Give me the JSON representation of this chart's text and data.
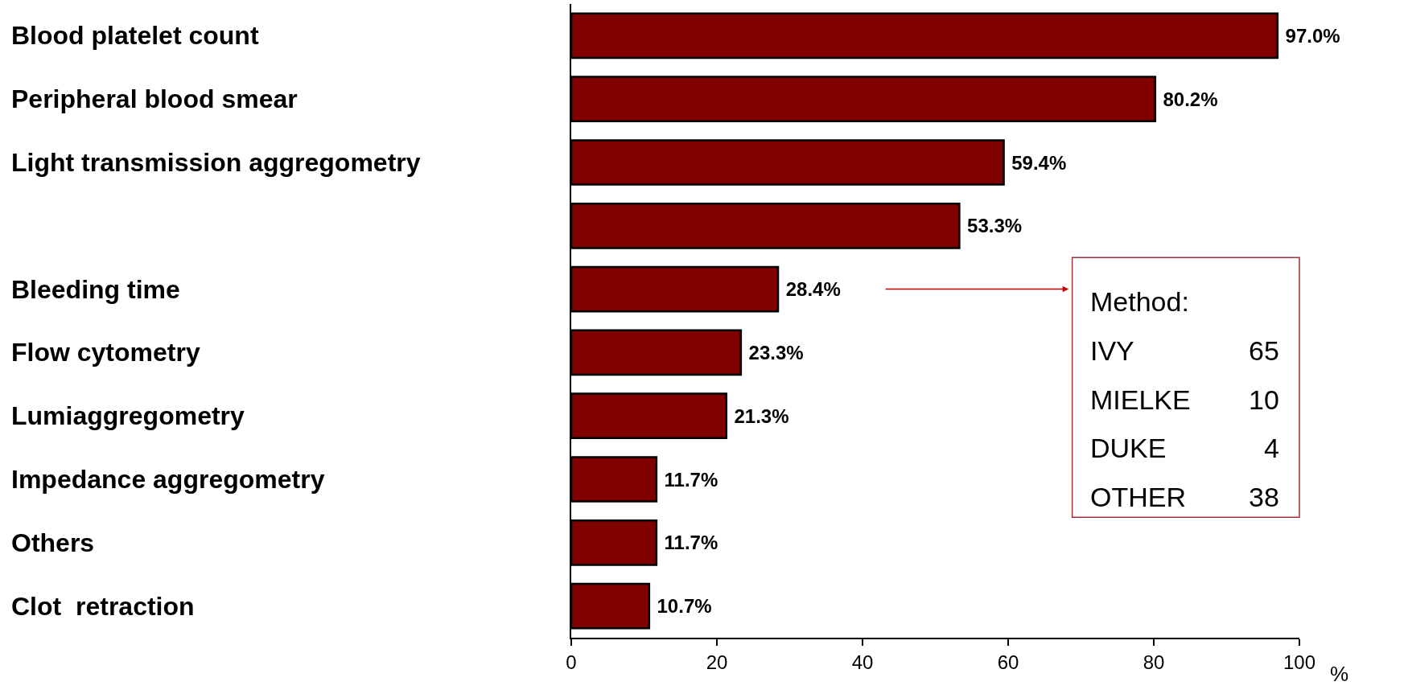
{
  "chart_data": {
    "type": "bar",
    "orientation": "horizontal",
    "categories": [
      "Blood platelet count",
      "Peripheral blood smear",
      "Light transmission aggregometry",
      null,
      "Bleeding time",
      "Flow cytometry",
      "Lumiaggregometry",
      "Impedance aggregometry",
      "Others",
      "Clot  retraction"
    ],
    "values": [
      97.0,
      80.2,
      59.4,
      53.3,
      28.4,
      23.3,
      21.3,
      11.7,
      11.7,
      10.7
    ],
    "value_labels": [
      "97.0%",
      "80.2%",
      "59.4%",
      "53.3%",
      "28.4%",
      "23.3%",
      "21.3%",
      "11.7%",
      "11.7%",
      "10.7%"
    ],
    "color": "#800000",
    "xlabel": "%",
    "xlim": [
      0,
      100
    ],
    "xticks": [
      0,
      20,
      40,
      60,
      80,
      100
    ],
    "legend": false,
    "annotations": [
      "Method:",
      "IVY 65",
      "MIELKE 10",
      "DUKE 4",
      "OTHER 38"
    ]
  }
}
